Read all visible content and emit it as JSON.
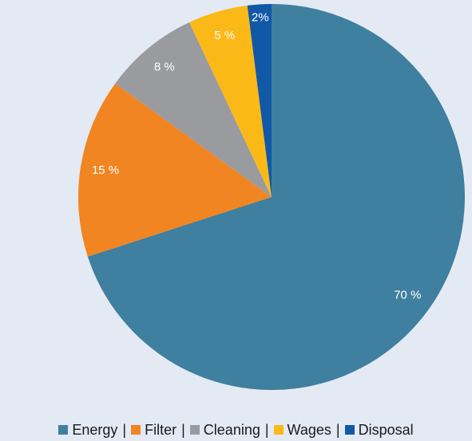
{
  "chart_data": {
    "type": "pie",
    "categories": [
      "Energy",
      "Filter",
      "Cleaning",
      "Wages",
      "Disposal"
    ],
    "values": [
      70,
      15,
      8,
      5,
      2
    ],
    "value_labels": [
      "70 %",
      "15 %",
      "8 %",
      "5 %",
      "2%"
    ],
    "colors": [
      "#3f7fa0",
      "#f08522",
      "#9a9b9f",
      "#fbb918",
      "#1159a6"
    ],
    "legend_separator": "|",
    "legend": "bottom"
  }
}
